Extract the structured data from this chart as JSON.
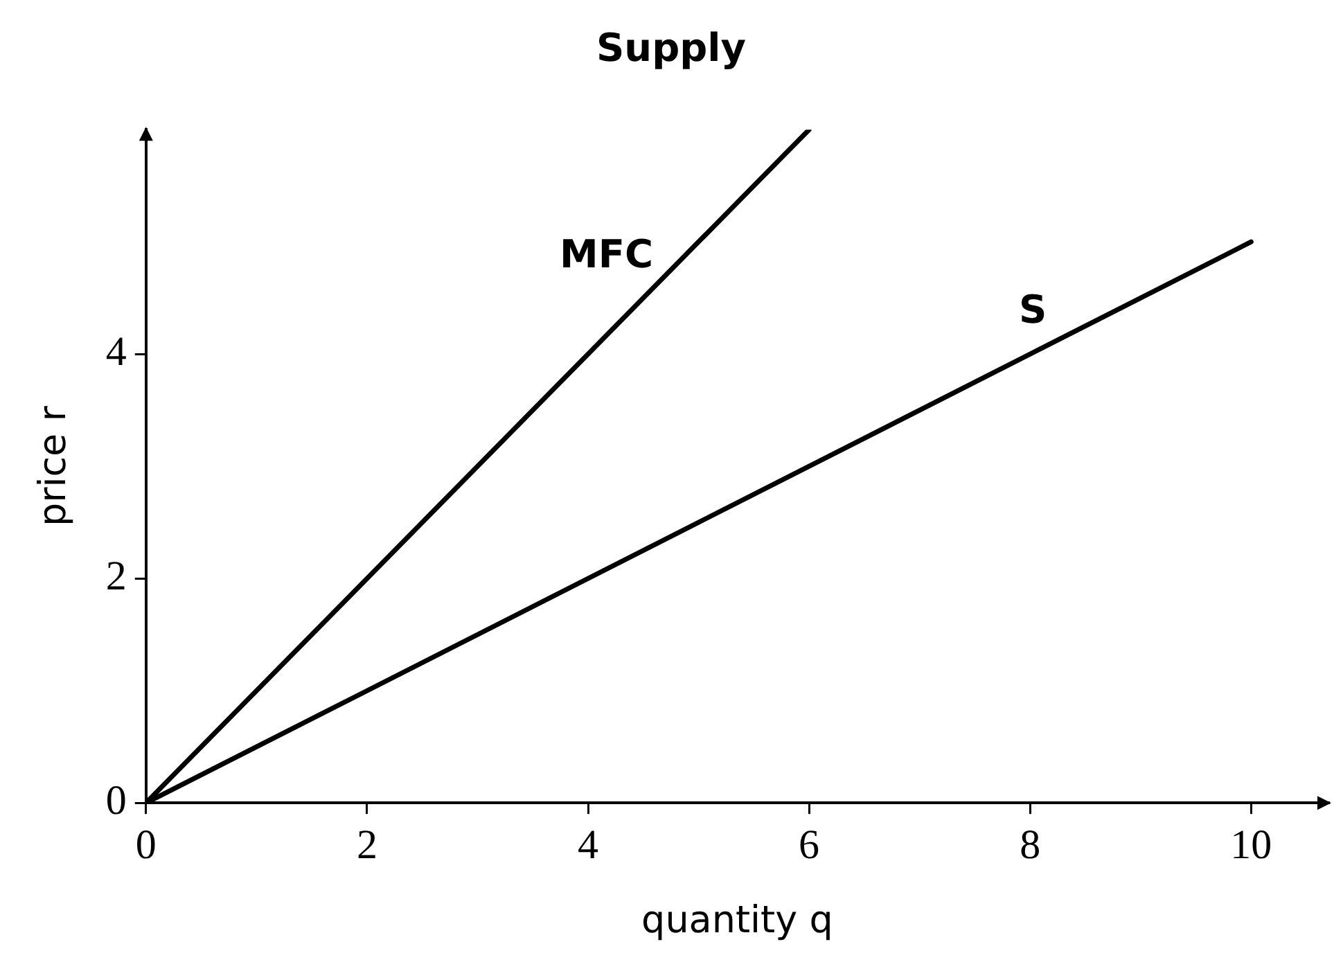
{
  "chart_data": {
    "type": "line",
    "title": "Supply",
    "xlabel": "quantity q",
    "ylabel": "price r",
    "xlim": [
      0,
      10.7
    ],
    "ylim": [
      0,
      6
    ],
    "xticks": [
      0,
      2,
      4,
      6,
      8,
      10
    ],
    "yticks": [
      0,
      2,
      4
    ],
    "grid": false,
    "legend": false,
    "marker": "none",
    "line_style": "solid",
    "series": [
      {
        "name": "MFC",
        "color": "#000000",
        "x": [
          0,
          6
        ],
        "values": [
          0,
          6
        ]
      },
      {
        "name": "S",
        "color": "#000000",
        "x": [
          0,
          10
        ],
        "values": [
          0,
          5
        ]
      }
    ]
  }
}
